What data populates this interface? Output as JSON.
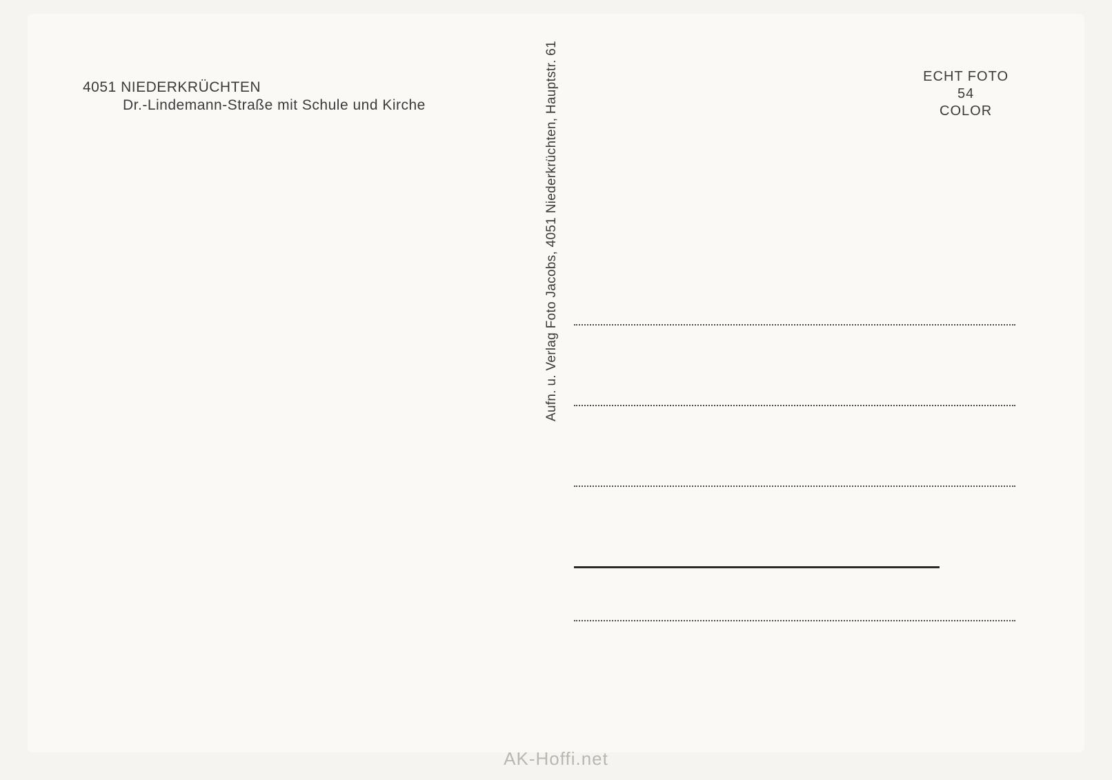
{
  "postcard": {
    "header_left": {
      "postal_code": "4051",
      "city": "NIEDERKRÜCHTEN",
      "description": "Dr.-Lindemann-Straße mit Schule und Kirche"
    },
    "header_right": {
      "line1": "ECHT FOTO",
      "line2": "54",
      "line3": "COLOR"
    },
    "publisher": "Aufn. u. Verlag Foto Jacobs, 4051 Niederkrüchten, Hauptstr. 61",
    "address_lines": {
      "count": 5,
      "dotted_count": 3,
      "solid_count": 1,
      "trailing_dotted": 1
    },
    "colors": {
      "background": "#f5f4f0",
      "card_background": "#faf9f5",
      "text": "#3a3a3a",
      "line_dotted": "#4a4a4a",
      "line_solid": "#2a2a2a",
      "watermark": "#b8b8b0"
    },
    "typography": {
      "header_fontsize": 21,
      "right_header_fontsize": 20,
      "vertical_fontsize": 19,
      "watermark_fontsize": 26
    }
  },
  "watermark": "AK-Hoffi.net"
}
